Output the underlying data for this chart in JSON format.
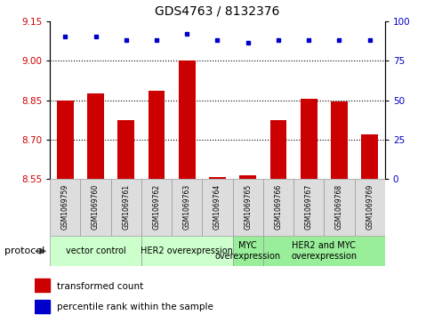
{
  "title": "GDS4763 / 8132376",
  "samples": [
    "GSM1069759",
    "GSM1069760",
    "GSM1069761",
    "GSM1069762",
    "GSM1069763",
    "GSM1069764",
    "GSM1069765",
    "GSM1069766",
    "GSM1069767",
    "GSM1069768",
    "GSM1069769"
  ],
  "bar_values": [
    8.85,
    8.875,
    8.775,
    8.885,
    9.0,
    8.558,
    8.565,
    8.775,
    8.855,
    8.845,
    8.72
  ],
  "dot_values": [
    90,
    90,
    88,
    88,
    92,
    88,
    86,
    88,
    88,
    88,
    88
  ],
  "ylim": [
    8.55,
    9.15
  ],
  "ylim_right": [
    0,
    100
  ],
  "yticks_left": [
    8.55,
    8.7,
    8.85,
    9.0,
    9.15
  ],
  "yticks_right": [
    0,
    25,
    50,
    75,
    100
  ],
  "bar_color": "#cc0000",
  "dot_color": "#0000cc",
  "bar_width": 0.55,
  "group_extents": [
    {
      "start": 0,
      "end": 2,
      "label": "vector control",
      "color": "#ccffcc"
    },
    {
      "start": 3,
      "end": 5,
      "label": "HER2 overexpression",
      "color": "#ccffcc"
    },
    {
      "start": 6,
      "end": 6,
      "label": "MYC\noverexpression",
      "color": "#99ee99"
    },
    {
      "start": 7,
      "end": 10,
      "label": "HER2 and MYC\noverexpression",
      "color": "#99ee99"
    }
  ],
  "protocol_label": "protocol",
  "legend_bar_label": "transformed count",
  "legend_dot_label": "percentile rank within the sample",
  "tick_label_color_left": "#cc0000",
  "tick_label_color_right": "#0000cc",
  "sample_box_color": "#dddddd",
  "title_fontsize": 10,
  "tick_fontsize": 7.5,
  "sample_fontsize": 5.5,
  "group_fontsize": 7,
  "legend_fontsize": 7.5
}
